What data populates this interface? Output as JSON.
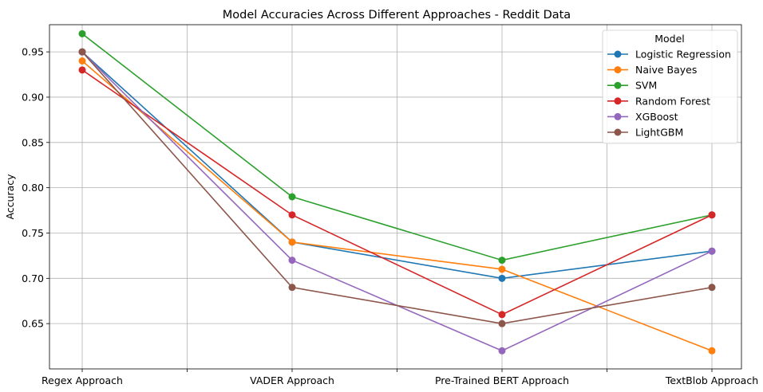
{
  "chart_data": {
    "type": "line",
    "title": "Model Accuracies Across Different Approaches - Reddit Data",
    "xlabel": "",
    "ylabel": "Accuracy",
    "categories": [
      "Regex Approach",
      "VADER Approach",
      "Pre-Trained BERT Approach",
      "TextBlob Approach"
    ],
    "ylim": [
      0.6,
      0.98
    ],
    "yticks": [
      0.65,
      0.7,
      0.75,
      0.8,
      0.85,
      0.9,
      0.95
    ],
    "ytick_labels": [
      "0.65",
      "0.70",
      "0.75",
      "0.80",
      "0.85",
      "0.90",
      "0.95"
    ],
    "grid": true,
    "legend": {
      "title": "Model",
      "placement": "top-right"
    },
    "series": [
      {
        "name": "Logistic Regression",
        "color": "#1f77b4",
        "values": [
          0.95,
          0.74,
          0.7,
          0.73
        ]
      },
      {
        "name": "Naive Bayes",
        "color": "#ff7f0e",
        "values": [
          0.94,
          0.74,
          0.71,
          0.62
        ]
      },
      {
        "name": "SVM",
        "color": "#2ca02c",
        "values": [
          0.97,
          0.79,
          0.72,
          0.77
        ]
      },
      {
        "name": "Random Forest",
        "color": "#d62728",
        "values": [
          0.93,
          0.77,
          0.66,
          0.77
        ]
      },
      {
        "name": "XGBoost",
        "color": "#9467bd",
        "values": [
          0.95,
          0.72,
          0.62,
          0.73
        ]
      },
      {
        "name": "LightGBM",
        "color": "#8c564b",
        "values": [
          0.95,
          0.69,
          0.65,
          0.69
        ]
      }
    ]
  }
}
